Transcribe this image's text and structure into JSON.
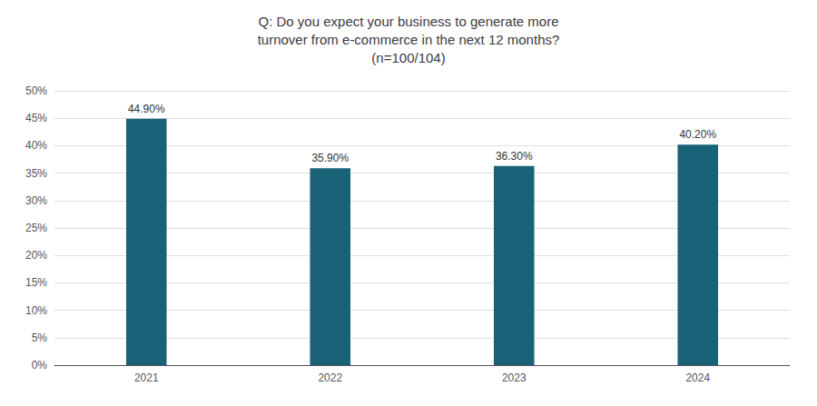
{
  "chart_data": {
    "type": "bar",
    "title": "Q: Do you expect your business to generate more\nturnover from e-commerce in the next 12 months?\n(n=100/104)",
    "categories": [
      "2021",
      "2022",
      "2023",
      "2024"
    ],
    "values": [
      44.9,
      35.9,
      36.3,
      40.2
    ],
    "value_labels": [
      "44.90%",
      "35.90%",
      "36.30%",
      "40.20%"
    ],
    "data_labels": true,
    "color": "#1a6278",
    "ylim": [
      0,
      50
    ],
    "yticks": [
      {
        "value": 0,
        "label": "0%"
      },
      {
        "value": 5,
        "label": "5%"
      },
      {
        "value": 10,
        "label": "10%"
      },
      {
        "value": 15,
        "label": "15%"
      },
      {
        "value": 20,
        "label": "20%"
      },
      {
        "value": 25,
        "label": "25%"
      },
      {
        "value": 30,
        "label": "30%"
      },
      {
        "value": 35,
        "label": "35%"
      },
      {
        "value": 40,
        "label": "40%"
      },
      {
        "value": 45,
        "label": "45%"
      },
      {
        "value": 50,
        "label": "50%"
      }
    ],
    "grid": true
  }
}
